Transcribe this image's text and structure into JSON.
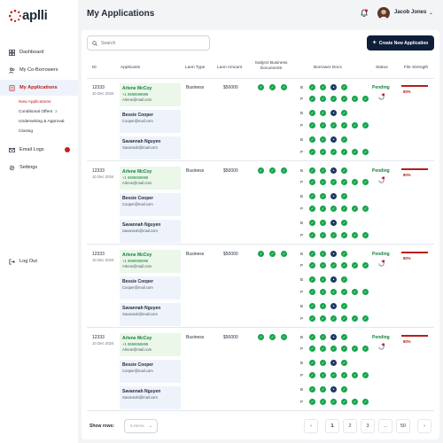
{
  "brand": {
    "logo_text": "aplli"
  },
  "header": {
    "title": "My Applications",
    "user_name": "Jacob Jones"
  },
  "sidebar": {
    "items": [
      {
        "label": "Dashboard",
        "icon": "dashboard-icon"
      },
      {
        "label": "My Co-Borrowers",
        "icon": "users-icon"
      },
      {
        "label": "My Applications",
        "icon": "document-icon",
        "active": true
      },
      {
        "label": "Email Logs",
        "icon": "mail-icon"
      },
      {
        "label": "Settings",
        "icon": "gear-icon"
      }
    ],
    "sub_items": [
      "New Applications",
      "Conditional Offers",
      "Underwriting & Approval",
      "Closing"
    ],
    "sub_badge": "2",
    "logout": "Log Out"
  },
  "toolbar": {
    "search_placeholder": "Search",
    "create_label": "Create New Application"
  },
  "table": {
    "headers": {
      "id": "ID",
      "applicants": "Applicants",
      "loan_type": "Laon Type",
      "loan_amount": "Laon Amount",
      "subject_docs": "Subject Business Documents",
      "borrower_docs": "Borrower Docs",
      "status": "Status",
      "file_strength": "File Strength"
    },
    "rows": [
      {
        "id": "12333",
        "date": "10 Dec 2024",
        "loan_type": "Business",
        "amount": "$50000",
        "status": "Pending",
        "strength": "80%",
        "strength_value": 80,
        "applicants": [
          {
            "name": "Arlene McCoy",
            "phone": "+1 9999999999",
            "email": "Arlene@mail.com"
          },
          {
            "name": "Bessie Cooper",
            "email": "Cooper@mail.com"
          },
          {
            "name": "Savannah Nguyen",
            "email": "Savannah@mail.com"
          }
        ]
      },
      {
        "id": "12333",
        "date": "10 Dec 2024",
        "loan_type": "Business",
        "amount": "$50000",
        "status": "Pending",
        "strength": "80%",
        "strength_value": 80,
        "applicants": [
          {
            "name": "Arlene McCoy",
            "phone": "+1 9999999999",
            "email": "Arlene@mail.com"
          },
          {
            "name": "Bessie Cooper",
            "email": "Cooper@mail.com"
          },
          {
            "name": "Savannah Nguyen",
            "email": "Savannah@mail.com"
          }
        ]
      },
      {
        "id": "12333",
        "date": "10 Dec 2024",
        "loan_type": "Business",
        "amount": "$50000",
        "status": "Pending",
        "strength": "80%",
        "strength_value": 80,
        "applicants": [
          {
            "name": "Arlene McCoy",
            "phone": "+1 9999999999",
            "email": "Arlene@mail.com"
          },
          {
            "name": "Bessie Cooper",
            "email": "Cooper@mail.com"
          },
          {
            "name": "Savannah Nguyen",
            "email": "Savannah@mail.com"
          }
        ]
      },
      {
        "id": "12333",
        "date": "10 Dec 2024",
        "loan_type": "Business",
        "amount": "$50000",
        "status": "Pending",
        "strength": "80%",
        "strength_value": 80,
        "applicants": [
          {
            "name": "Arlene McCoy",
            "phone": "+1 9999999999",
            "email": "Arlene@mail.com"
          },
          {
            "name": "Bessie Cooper",
            "email": "Cooper@mail.com"
          },
          {
            "name": "Savannah Nguyen",
            "email": "Savannah@mail.com"
          }
        ]
      }
    ],
    "doc_labels": [
      "B",
      "P"
    ]
  },
  "footer": {
    "show_rows_label": "Show rows:",
    "rows_value": "5 Items",
    "pages": [
      "1",
      "2",
      "3",
      "...",
      "50"
    ]
  },
  "colors": {
    "accent": "#b91c1c",
    "success": "#16a34a",
    "navy": "#0f1f3a"
  }
}
